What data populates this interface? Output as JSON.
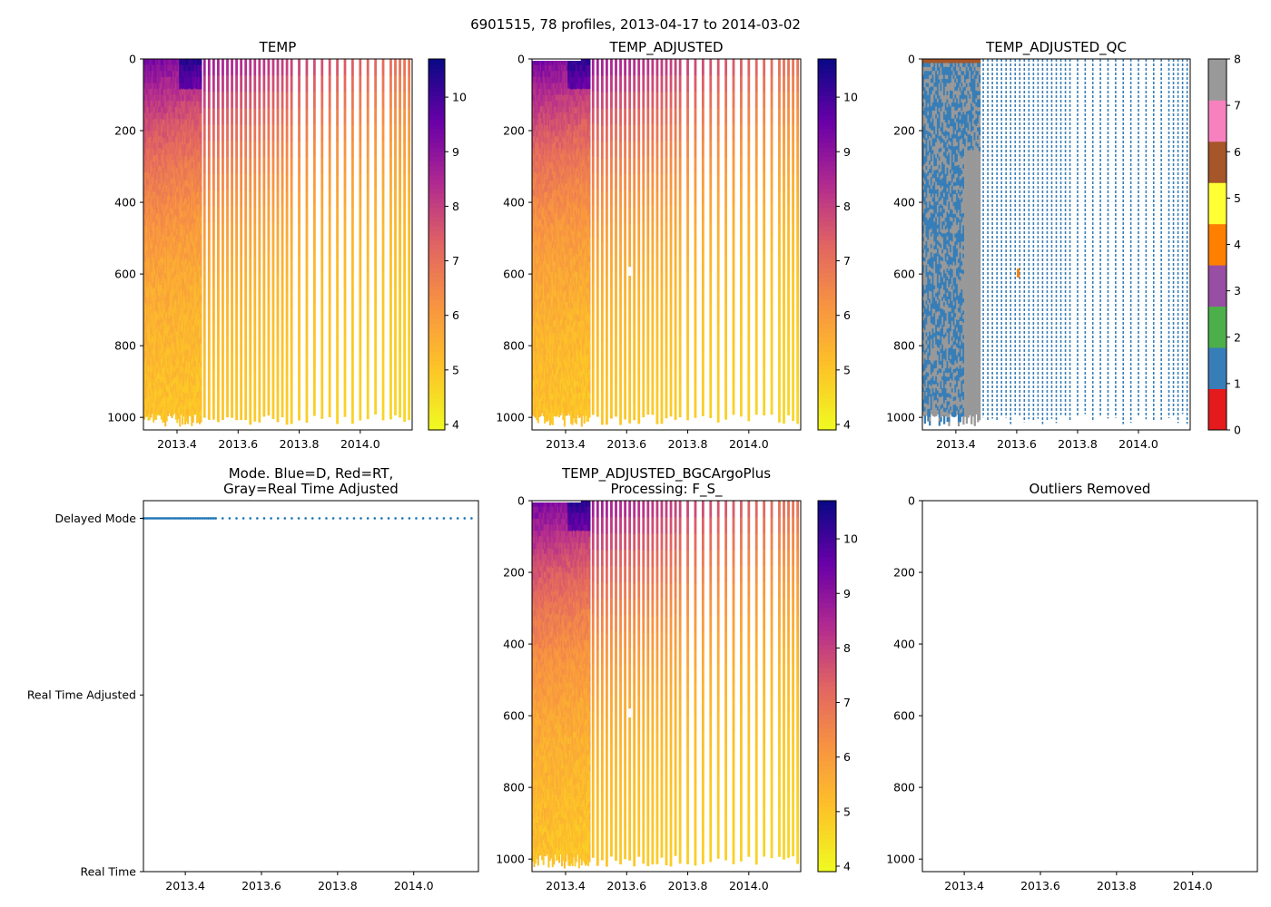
{
  "figure": {
    "suptitle": "6901515, 78 profiles, 2013-04-17 to 2014-03-02"
  },
  "palette": {
    "plasma_r": [
      "#f0f921",
      "#fdc328",
      "#f89441",
      "#e16462",
      "#b12a90",
      "#6a00a8",
      "#0d0887"
    ],
    "qc": [
      "#e41a1c",
      "#377eb8",
      "#4daf4a",
      "#984ea3",
      "#ff7f00",
      "#ffff33",
      "#a65628",
      "#f781bf",
      "#999999"
    ],
    "mode_dot": "#1f77b4"
  },
  "chart_data": [
    {
      "id": "temp",
      "type": "heatmap",
      "title": "TEMP",
      "x_range": [
        2013.29,
        2014.17
      ],
      "y_range": [
        1035,
        0
      ],
      "x_ticks": [
        "2013.4",
        "2013.6",
        "2013.8",
        "2014.0"
      ],
      "x_tick_values": [
        2013.4,
        2013.6,
        2013.8,
        2014.0
      ],
      "y_ticks": [
        "0",
        "200",
        "400",
        "600",
        "800",
        "1000"
      ],
      "y_tick_values": [
        0,
        200,
        400,
        600,
        800,
        1000
      ],
      "colorbar": {
        "range": [
          3.9,
          10.7
        ],
        "ticks": [
          "4",
          "5",
          "6",
          "7",
          "8",
          "9",
          "10"
        ],
        "tick_values": [
          4,
          5,
          6,
          7,
          8,
          9,
          10
        ]
      },
      "dense_profiles_until": 2013.48,
      "sparse_profile_times": [
        2013.49,
        2013.505,
        2013.52,
        2013.535,
        2013.55,
        2013.565,
        2013.58,
        2013.595,
        2013.61,
        2013.625,
        2013.64,
        2013.655,
        2013.67,
        2013.685,
        2013.7,
        2013.715,
        2013.73,
        2013.745,
        2013.76,
        2013.775,
        2013.8,
        2013.825,
        2013.85,
        2013.875,
        2013.9,
        2013.925,
        2013.95,
        2013.975,
        2014.0,
        2014.025,
        2014.05,
        2014.075,
        2014.1,
        2014.115,
        2014.13,
        2014.145,
        2014.16
      ],
      "surface_temp_range": [
        9.5,
        7.0
      ],
      "deep_temp": 4.0
    },
    {
      "id": "temp_adjusted",
      "type": "heatmap",
      "title": "TEMP_ADJUSTED",
      "x_range": [
        2013.29,
        2014.17
      ],
      "y_range": [
        1035,
        0
      ],
      "x_ticks": [
        "2013.4",
        "2013.6",
        "2013.8",
        "2014.0"
      ],
      "x_tick_values": [
        2013.4,
        2013.6,
        2013.8,
        2014.0
      ],
      "y_ticks": [
        "0",
        "200",
        "400",
        "600",
        "800",
        "1000"
      ],
      "y_tick_values": [
        0,
        200,
        400,
        600,
        800,
        1000
      ],
      "colorbar": {
        "range": [
          3.9,
          10.7
        ],
        "ticks": [
          "4",
          "5",
          "6",
          "7",
          "8",
          "9",
          "10"
        ],
        "tick_values": [
          4,
          5,
          6,
          7,
          8,
          9,
          10
        ]
      }
    },
    {
      "id": "temp_adjusted_qc",
      "type": "heatmap",
      "title": "TEMP_ADJUSTED_QC",
      "x_range": [
        2013.29,
        2014.17
      ],
      "y_range": [
        1035,
        0
      ],
      "x_ticks": [
        "2013.4",
        "2013.6",
        "2013.8",
        "2014.0"
      ],
      "x_tick_values": [
        2013.4,
        2013.6,
        2013.8,
        2014.0
      ],
      "y_ticks": [
        "0",
        "200",
        "400",
        "600",
        "800",
        "1000"
      ],
      "y_tick_values": [
        0,
        200,
        400,
        600,
        800,
        1000
      ],
      "colorbar": {
        "range": [
          0,
          8
        ],
        "ticks": [
          "0",
          "1",
          "2",
          "3",
          "4",
          "5",
          "6",
          "7",
          "8"
        ],
        "tick_values": [
          0,
          1,
          2,
          3,
          4,
          5,
          6,
          7,
          8
        ],
        "categorical": true
      },
      "dominant_flags": [
        1,
        8
      ]
    },
    {
      "id": "mode",
      "type": "scatter",
      "title_lines": [
        "Mode. Blue=D, Red=RT,",
        "Gray=Real Time Adjusted"
      ],
      "x_range": [
        2013.29,
        2014.17
      ],
      "x_ticks": [
        "2013.4",
        "2013.6",
        "2013.8",
        "2014.0"
      ],
      "x_tick_values": [
        2013.4,
        2013.6,
        2013.8,
        2014.0
      ],
      "y_categories": [
        "Real Time",
        "Real Time Adjusted",
        "Delayed Mode"
      ],
      "y_range": [
        0,
        2.1
      ],
      "points_level": 2,
      "points_count": 78
    },
    {
      "id": "bgc",
      "type": "heatmap",
      "title_lines": [
        "TEMP_ADJUSTED_BGCArgoPlus",
        "Processing: F_S_"
      ],
      "x_range": [
        2013.29,
        2014.17
      ],
      "y_range": [
        1035,
        0
      ],
      "x_ticks": [
        "2013.4",
        "2013.6",
        "2013.8",
        "2014.0"
      ],
      "x_tick_values": [
        2013.4,
        2013.6,
        2013.8,
        2014.0
      ],
      "y_ticks": [
        "0",
        "200",
        "400",
        "600",
        "800",
        "1000"
      ],
      "y_tick_values": [
        0,
        200,
        400,
        600,
        800,
        1000
      ],
      "colorbar": {
        "range": [
          3.9,
          10.7
        ],
        "ticks": [
          "4",
          "5",
          "6",
          "7",
          "8",
          "9",
          "10"
        ],
        "tick_values": [
          4,
          5,
          6,
          7,
          8,
          9,
          10
        ]
      }
    },
    {
      "id": "outliers",
      "type": "scatter",
      "title": "Outliers Removed",
      "x_range": [
        2013.29,
        2014.17
      ],
      "y_range": [
        1035,
        0
      ],
      "x_ticks": [
        "2013.4",
        "2013.6",
        "2013.8",
        "2014.0"
      ],
      "x_tick_values": [
        2013.4,
        2013.6,
        2013.8,
        2014.0
      ],
      "y_ticks": [
        "0",
        "200",
        "400",
        "600",
        "800",
        "1000"
      ],
      "y_tick_values": [
        0,
        200,
        400,
        600,
        800,
        1000
      ],
      "points": []
    }
  ]
}
